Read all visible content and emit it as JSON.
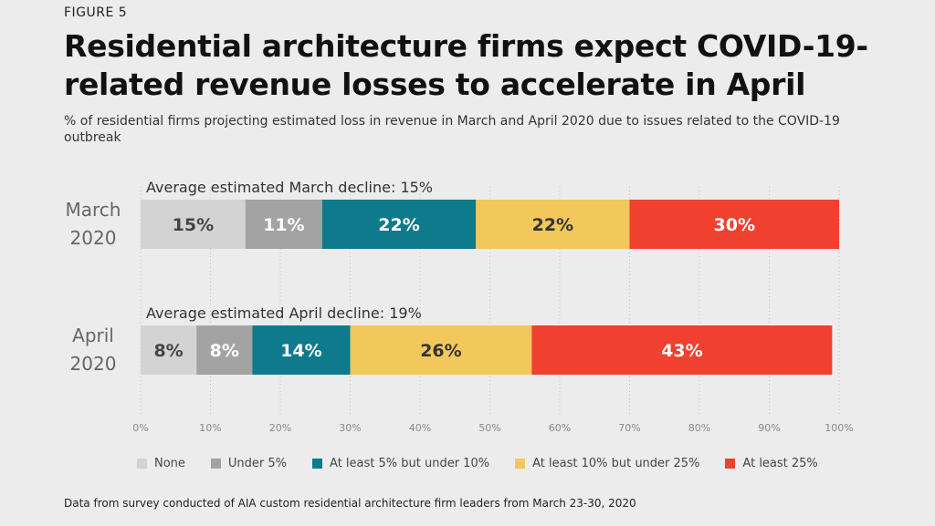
{
  "figure_label": "FIGURE 5",
  "title": "Residential architecture firms expect COVID-19-related revenue losses to accelerate in April",
  "subtitle": "% of residential firms projecting estimated loss in revenue in March and April 2020 due to issues related to the COVID-19 outbreak",
  "footnote": "Data from survey conducted of AIA custom residential architecture firm leaders from March 23-30, 2020",
  "chart_data": {
    "type": "bar",
    "orientation": "horizontal",
    "stacked": true,
    "categories": [
      "March 2020",
      "April 2020"
    ],
    "category_lines": [
      [
        "March",
        "2020"
      ],
      [
        "April",
        "2020"
      ]
    ],
    "annotations": [
      "Average estimated March decline: 15%",
      "Average estimated April decline: 19%"
    ],
    "series": [
      {
        "name": "None",
        "color": "#d3d3d3",
        "label_color": "#444444",
        "values": [
          15,
          8
        ]
      },
      {
        "name": "Under 5%",
        "color": "#a3a3a3",
        "label_color": "#ffffff",
        "values": [
          11,
          8
        ]
      },
      {
        "name": "At least 5% but under 10%",
        "color": "#0e7a8c",
        "label_color": "#ffffff",
        "values": [
          22,
          14
        ]
      },
      {
        "name": "At least 10% but under 25%",
        "color": "#f2c75c",
        "label_color": "#333333",
        "values": [
          22,
          26
        ]
      },
      {
        "name": "At least 25%",
        "color": "#f0402f",
        "label_color": "#ffffff",
        "values": [
          30,
          43
        ]
      }
    ],
    "data_labels": [
      [
        "15%",
        "11%",
        "22%",
        "22%",
        "30%"
      ],
      [
        "8%",
        "8%",
        "14%",
        "26%",
        "43%"
      ]
    ],
    "xlim": [
      0,
      100
    ],
    "xticks": [
      "0%",
      "10%",
      "20%",
      "30%",
      "40%",
      "50%",
      "60%",
      "70%",
      "80%",
      "90%",
      "100%"
    ],
    "grid": "vertical dotted",
    "legend_position": "bottom"
  }
}
